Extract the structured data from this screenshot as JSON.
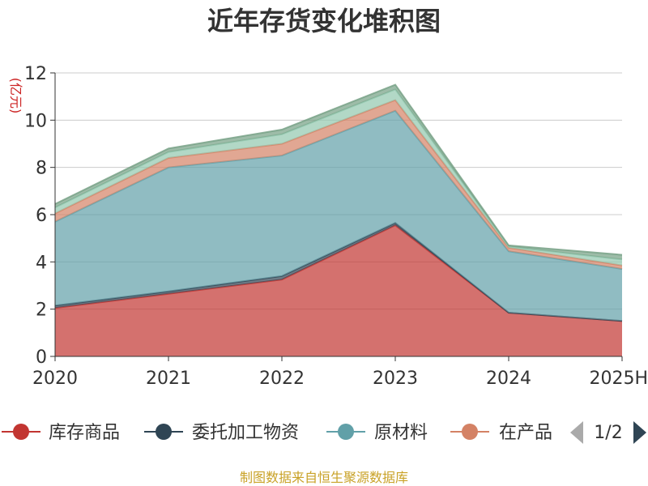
{
  "chart_data": {
    "type": "area",
    "stacked": true,
    "title": "近年存货变化堆积图",
    "ylabel": "(亿元)",
    "xlabel": "",
    "categories": [
      "2020",
      "2021",
      "2022",
      "2023",
      "2024",
      "2025H"
    ],
    "ylim": [
      0,
      12
    ],
    "yticks": [
      0,
      2,
      4,
      6,
      8,
      10,
      12
    ],
    "grid": true,
    "legend_position": "bottom",
    "series": [
      {
        "name": "库存商品",
        "color": "#c23531",
        "values": [
          2.05,
          2.65,
          3.25,
          5.55,
          1.85,
          1.5
        ]
      },
      {
        "name": "委托加工物资",
        "color": "#2f4554",
        "values": [
          0.1,
          0.1,
          0.15,
          0.1,
          0.0,
          0.0
        ]
      },
      {
        "name": "原材料",
        "color": "#61a0a8",
        "values": [
          3.55,
          5.25,
          5.1,
          4.75,
          2.6,
          2.2
        ]
      },
      {
        "name": "在产品",
        "values": [
          0.35,
          0.4,
          0.5,
          0.45,
          0.15,
          0.15
        ],
        "color": "#d48265"
      },
      {
        "name": "",
        "color": "#91c7ae",
        "values": [
          0.25,
          0.25,
          0.4,
          0.45,
          0.05,
          0.25
        ]
      },
      {
        "name": "",
        "color": "#749f83",
        "values": [
          0.15,
          0.15,
          0.2,
          0.2,
          0.05,
          0.2
        ]
      }
    ]
  },
  "legend": {
    "labels": [
      "库存商品",
      "委托加工物资",
      "原材料",
      "在产品"
    ],
    "page": "1/2"
  },
  "source": "制图数据来自恒生聚源数据库"
}
